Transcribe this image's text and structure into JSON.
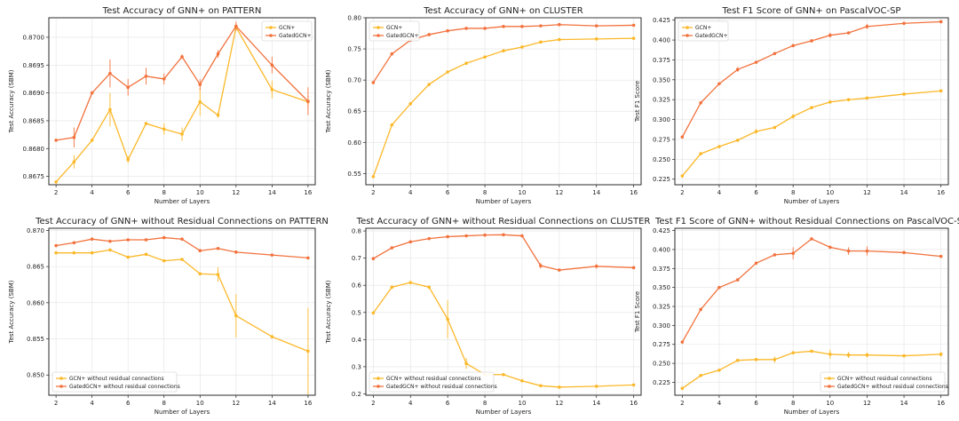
{
  "colors": {
    "GCN+": "#fbb829",
    "GatedGCN+": "#f2723d"
  },
  "chart_data": [
    {
      "type": "line",
      "title": "Test Accuracy of GNN+ on PATTERN",
      "xlabel": "Number of Layers",
      "ylabel": "Test Accuracy (SBM)",
      "xlim": [
        1.6,
        16.4
      ],
      "ylim": [
        0.86735,
        0.87035
      ],
      "xticks": [
        2,
        4,
        6,
        8,
        10,
        12,
        14,
        16
      ],
      "yticks": [
        0.8675,
        0.868,
        0.8685,
        0.869,
        0.8695,
        0.87
      ],
      "ytick_labels": [
        "0.8675",
        "0.8680",
        "0.8685",
        "0.8690",
        "0.8695",
        "0.8700"
      ],
      "grid": true,
      "legend_position": "top-right",
      "x": [
        2,
        3,
        4,
        5,
        6,
        7,
        8,
        9,
        10,
        11,
        12,
        14,
        16
      ],
      "series": [
        {
          "name": "GCN+",
          "values": [
            0.8674,
            0.86776,
            0.86815,
            0.8687,
            0.8678,
            0.86845,
            0.86835,
            0.86826,
            0.86884,
            0.8686,
            0.87018,
            0.86906,
            0.86884
          ],
          "err": [
            1e-05,
            0.00012,
            1e-05,
            0.0003,
            6e-05,
            1e-05,
            0.0001,
            0.00012,
            0.00025,
            5e-05,
            5e-05,
            0.00016,
            0.00012
          ]
        },
        {
          "name": "GatedGCN+",
          "values": [
            0.86815,
            0.8682,
            0.869,
            0.86935,
            0.8691,
            0.8693,
            0.86925,
            0.86965,
            0.86915,
            0.8697,
            0.8702,
            0.8695,
            0.86885
          ],
          "err": [
            2e-05,
            0.00018,
            1e-05,
            0.00025,
            0.00015,
            0.00015,
            0.0001,
            4e-05,
            0.0001,
            7e-05,
            8e-05,
            0.00015,
            0.00025
          ]
        }
      ]
    },
    {
      "type": "line",
      "title": "Test Accuracy of GNN+ on CLUSTER",
      "xlabel": "Number of Layers",
      "ylabel": "Test Accuracy (SBM)",
      "xlim": [
        1.6,
        16.4
      ],
      "ylim": [
        0.532,
        0.8
      ],
      "xticks": [
        2,
        4,
        6,
        8,
        10,
        12,
        14,
        16
      ],
      "yticks": [
        0.55,
        0.6,
        0.65,
        0.7,
        0.75,
        0.8
      ],
      "ytick_labels": [
        "0.55",
        "0.60",
        "0.65",
        "0.70",
        "0.75",
        "0.80"
      ],
      "grid": true,
      "legend_position": "top-left",
      "x": [
        2,
        3,
        4,
        5,
        6,
        7,
        8,
        9,
        10,
        11,
        12,
        14,
        16
      ],
      "series": [
        {
          "name": "GCN+",
          "values": [
            0.545,
            0.628,
            0.662,
            0.693,
            0.713,
            0.727,
            0.737,
            0.747,
            0.753,
            0.761,
            0.765,
            0.766,
            0.767
          ],
          "err": [
            0,
            0,
            0,
            0,
            0,
            0,
            0,
            0,
            0,
            0,
            0,
            0,
            0
          ]
        },
        {
          "name": "GatedGCN+",
          "values": [
            0.696,
            0.742,
            0.764,
            0.773,
            0.779,
            0.783,
            0.783,
            0.786,
            0.786,
            0.787,
            0.789,
            0.787,
            0.788
          ],
          "err": [
            0,
            0,
            0,
            0,
            0,
            0,
            0,
            0,
            0,
            0,
            0,
            0,
            0
          ]
        }
      ]
    },
    {
      "type": "line",
      "title": "Test F1 Score of GNN+ on PascalVOC-SP",
      "xlabel": "Number of Layers",
      "ylabel": "Test F1 Score",
      "xlim": [
        1.6,
        16.4
      ],
      "ylim": [
        0.218,
        0.428
      ],
      "xticks": [
        2,
        4,
        6,
        8,
        10,
        12,
        14,
        16
      ],
      "yticks": [
        0.225,
        0.25,
        0.275,
        0.3,
        0.325,
        0.35,
        0.375,
        0.4,
        0.425
      ],
      "ytick_labels": [
        "0.225",
        "0.250",
        "0.275",
        "0.300",
        "0.325",
        "0.350",
        "0.375",
        "0.400",
        "0.425"
      ],
      "grid": true,
      "legend_position": "top-left",
      "x": [
        2,
        3,
        4,
        5,
        6,
        7,
        8,
        9,
        10,
        11,
        12,
        14,
        16
      ],
      "series": [
        {
          "name": "GCN+",
          "values": [
            0.229,
            0.257,
            0.266,
            0.274,
            0.285,
            0.29,
            0.304,
            0.315,
            0.322,
            0.325,
            0.327,
            0.332,
            0.336
          ],
          "err": [
            0.001,
            0.001,
            0.001,
            0.002,
            0.003,
            0.002,
            0.003,
            0.002,
            0.002,
            0.002,
            0.001,
            0.001,
            0.001
          ]
        },
        {
          "name": "GatedGCN+",
          "values": [
            0.278,
            0.321,
            0.345,
            0.363,
            0.372,
            0.383,
            0.393,
            0.399,
            0.406,
            0.409,
            0.417,
            0.421,
            0.423
          ],
          "err": [
            0.001,
            0.001,
            0.002,
            0.003,
            0.001,
            0.002,
            0.002,
            0.002,
            0.003,
            0.001,
            0.003,
            0.001,
            0.001
          ]
        }
      ]
    },
    {
      "type": "line",
      "title": "Test Accuracy of GNN+ without Residual Connections on PATTERN",
      "xlabel": "Number of Layers",
      "ylabel": "Test Accuracy (SBM)",
      "xlim": [
        1.6,
        16.4
      ],
      "ylim": [
        0.8472,
        0.8703
      ],
      "xticks": [
        2,
        4,
        6,
        8,
        10,
        12,
        14,
        16
      ],
      "yticks": [
        0.85,
        0.855,
        0.86,
        0.865,
        0.87
      ],
      "ytick_labels": [
        "0.850",
        "0.855",
        "0.860",
        "0.865",
        "0.870"
      ],
      "grid": true,
      "legend_position": "bottom-left",
      "x": [
        2,
        3,
        4,
        5,
        6,
        7,
        8,
        9,
        10,
        11,
        12,
        14,
        16
      ],
      "series": [
        {
          "name": "GCN+ without residual connections",
          "values": [
            0.8669,
            0.8669,
            0.8669,
            0.8673,
            0.8663,
            0.8667,
            0.8658,
            0.866,
            0.864,
            0.8639,
            0.8582,
            0.8553,
            0.8533
          ],
          "err": [
            0.0001,
            0.0001,
            0.0001,
            0.0002,
            0.0002,
            0.0002,
            0.0001,
            0.0001,
            0.0001,
            0.001,
            0.003,
            0.0001,
            0.006
          ]
        },
        {
          "name": "GatedGCN+ without residual connections",
          "values": [
            0.8679,
            0.8683,
            0.8688,
            0.8685,
            0.8687,
            0.8687,
            0.869,
            0.8688,
            0.8672,
            0.8675,
            0.867,
            0.8666,
            0.8662
          ],
          "err": [
            0.0001,
            0.0001,
            0.0001,
            0.0001,
            0.0001,
            0.0001,
            0.0001,
            0.0002,
            0.0001,
            0.0001,
            0.0001,
            0.0001,
            0.0001
          ]
        }
      ]
    },
    {
      "type": "line",
      "title": "Test Accuracy of GNN+ without Residual Connections on CLUSTER",
      "xlabel": "Number of Layers",
      "ylabel": "Test Accuracy (SBM)",
      "xlim": [
        1.6,
        16.4
      ],
      "ylim": [
        0.195,
        0.81
      ],
      "xticks": [
        2,
        4,
        6,
        8,
        10,
        12,
        14,
        16
      ],
      "yticks": [
        0.2,
        0.3,
        0.4,
        0.5,
        0.6,
        0.7,
        0.8
      ],
      "ytick_labels": [
        "0.2",
        "0.3",
        "0.4",
        "0.5",
        "0.6",
        "0.7",
        "0.8"
      ],
      "grid": true,
      "legend_position": "bottom-left",
      "x": [
        2,
        3,
        4,
        5,
        6,
        7,
        8,
        9,
        10,
        11,
        12,
        14,
        16
      ],
      "series": [
        {
          "name": "GCN+ without residual connections",
          "values": [
            0.498,
            0.593,
            0.61,
            0.593,
            0.475,
            0.312,
            0.271,
            0.271,
            0.248,
            0.23,
            0.225,
            0.228,
            0.233
          ],
          "err": [
            0.002,
            0.002,
            0.002,
            0.002,
            0.07,
            0.02,
            0.002,
            0.002,
            0.002,
            0.002,
            0.002,
            0.002,
            0.002
          ]
        },
        {
          "name": "GatedGCN+ without residual connections",
          "values": [
            0.698,
            0.738,
            0.76,
            0.772,
            0.779,
            0.782,
            0.785,
            0.786,
            0.782,
            0.672,
            0.656,
            0.67,
            0.665
          ],
          "err": [
            0.002,
            0.002,
            0.002,
            0.002,
            0.002,
            0.002,
            0.002,
            0.002,
            0.002,
            0.01,
            0.003,
            0.008,
            0.003
          ]
        }
      ]
    },
    {
      "type": "line",
      "title": "Test F1 Score of GNN+ without Residual Connections on PascalVOC-SP",
      "xlabel": "Number of Layers",
      "ylabel": "Test F1 Score",
      "xlim": [
        1.6,
        16.4
      ],
      "ylim": [
        0.208,
        0.428
      ],
      "xticks": [
        2,
        4,
        6,
        8,
        10,
        12,
        14,
        16
      ],
      "yticks": [
        0.225,
        0.25,
        0.275,
        0.3,
        0.325,
        0.35,
        0.375,
        0.4,
        0.425
      ],
      "ytick_labels": [
        "0.225",
        "0.250",
        "0.275",
        "0.300",
        "0.325",
        "0.350",
        "0.375",
        "0.400",
        "0.425"
      ],
      "grid": true,
      "legend_position": "bottom-right",
      "x": [
        2,
        3,
        4,
        5,
        6,
        7,
        8,
        9,
        10,
        11,
        12,
        14,
        16
      ],
      "series": [
        {
          "name": "GCN+ without residual connections",
          "values": [
            0.217,
            0.234,
            0.241,
            0.254,
            0.255,
            0.255,
            0.264,
            0.266,
            0.262,
            0.261,
            0.261,
            0.26,
            0.262
          ],
          "err": [
            0.001,
            0.001,
            0.001,
            0.001,
            0.001,
            0.004,
            0.002,
            0.001,
            0.006,
            0.004,
            0.003,
            0.001,
            0.003
          ]
        },
        {
          "name": "GatedGCN+ without residual connections",
          "values": [
            0.278,
            0.321,
            0.35,
            0.36,
            0.382,
            0.393,
            0.395,
            0.414,
            0.403,
            0.398,
            0.398,
            0.396,
            0.391
          ],
          "err": [
            0.001,
            0.001,
            0.001,
            0.002,
            0.002,
            0.002,
            0.008,
            0.001,
            0.002,
            0.005,
            0.006,
            0.001,
            0.001
          ]
        }
      ]
    }
  ]
}
